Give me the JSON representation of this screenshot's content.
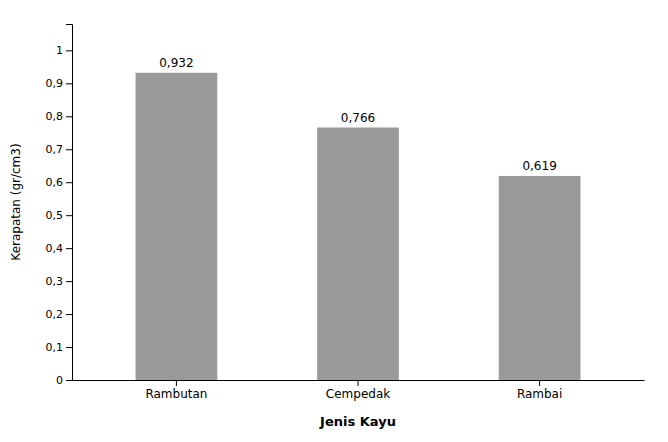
{
  "chart_data": {
    "type": "bar",
    "categories": [
      "Rambutan",
      "Cempedak",
      "Rambai"
    ],
    "values": [
      0.932,
      0.766,
      0.619
    ],
    "value_labels": [
      "0,932",
      "0,766",
      "0,619"
    ],
    "data_labels": true,
    "color": "#999999",
    "xlabel": "Jenis Kayu",
    "ylabel": "Kerapatan (gr/cm3)",
    "ylim": [
      0,
      1.08
    ],
    "yticks": [
      0,
      {
        "value": 0.1,
        "label": "0,1"
      },
      {
        "value": 0.2,
        "label": "0,2"
      },
      {
        "value": 0.3,
        "label": "0,3"
      },
      {
        "value": 0.4,
        "label": "0,4"
      },
      {
        "value": 0.5,
        "label": "0,5"
      },
      {
        "value": 0.6,
        "label": "0,6"
      },
      {
        "value": 0.7,
        "label": "0,7"
      },
      {
        "value": 0.8,
        "label": "0,8"
      },
      {
        "value": 0.9,
        "label": "0,9"
      },
      1
    ],
    "grid": false
  }
}
